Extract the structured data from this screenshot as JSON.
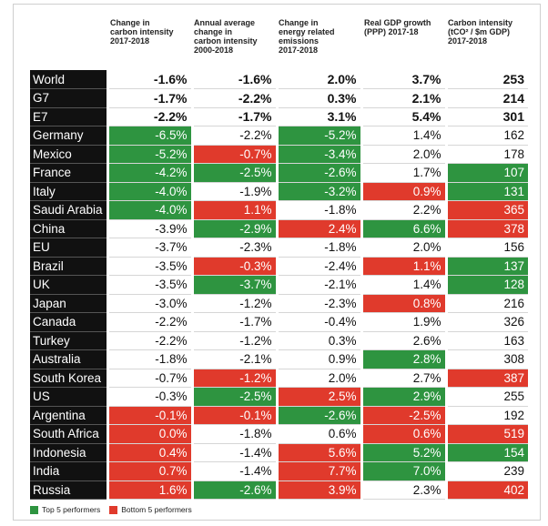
{
  "headers": [
    [
      "Change in",
      "carbon intensity",
      "2017-2018"
    ],
    [
      "Annual average",
      "change in",
      "carbon intensity",
      "2000-2018"
    ],
    [
      "Change in",
      "energy related",
      "emissions",
      "2017-2018"
    ],
    [
      "Real GDP growth",
      "(PPP) 2017-18"
    ],
    [
      "Carbon intensity",
      "(tCO² / $m GDP)",
      "2017-2018"
    ]
  ],
  "legend": {
    "top": "Top 5 performers",
    "bottom": "Bottom 5 performers"
  },
  "colors": {
    "top": "#2e9440",
    "bottom": "#e03a2c",
    "name_bg": "#111111"
  },
  "chart_data": {
    "type": "table",
    "columns": [
      "Change in carbon intensity 2017-2018",
      "Annual average change in carbon intensity 2000-2018",
      "Change in energy related emissions 2017-2018",
      "Real GDP growth (PPP) 2017-18",
      "Carbon intensity (tCO² / $m GDP) 2017-2018"
    ],
    "rows": [
      {
        "name": "World",
        "bold": true,
        "values": [
          "-1.6%",
          "-1.6%",
          "2.0%",
          "3.7%",
          "253"
        ],
        "status": [
          "",
          "",
          "",
          "",
          ""
        ]
      },
      {
        "name": "G7",
        "bold": true,
        "values": [
          "-1.7%",
          "-2.2%",
          "0.3%",
          "2.1%",
          "214"
        ],
        "status": [
          "",
          "",
          "",
          "",
          ""
        ]
      },
      {
        "name": "E7",
        "bold": true,
        "values": [
          "-2.2%",
          "-1.7%",
          "3.1%",
          "5.4%",
          "301"
        ],
        "status": [
          "",
          "",
          "",
          "",
          ""
        ]
      },
      {
        "name": "Germany",
        "values": [
          "-6.5%",
          "-2.2%",
          "-5.2%",
          "1.4%",
          "162"
        ],
        "status": [
          "top",
          "",
          "top",
          "",
          ""
        ]
      },
      {
        "name": "Mexico",
        "values": [
          "-5.2%",
          "-0.7%",
          "-3.4%",
          "2.0%",
          "178"
        ],
        "status": [
          "top",
          "bottom",
          "top",
          "",
          ""
        ]
      },
      {
        "name": "France",
        "values": [
          "-4.2%",
          "-2.5%",
          "-2.6%",
          "1.7%",
          "107"
        ],
        "status": [
          "top",
          "top",
          "top",
          "",
          "top"
        ]
      },
      {
        "name": "Italy",
        "values": [
          "-4.0%",
          "-1.9%",
          "-3.2%",
          "0.9%",
          "131"
        ],
        "status": [
          "top",
          "",
          "top",
          "bottom",
          "top"
        ]
      },
      {
        "name": "Saudi Arabia",
        "values": [
          "-4.0%",
          "1.1%",
          "-1.8%",
          "2.2%",
          "365"
        ],
        "status": [
          "top",
          "bottom",
          "",
          "",
          "bottom"
        ]
      },
      {
        "name": "China",
        "values": [
          "-3.9%",
          "-2.9%",
          "2.4%",
          "6.6%",
          "378"
        ],
        "status": [
          "",
          "top",
          "bottom",
          "top",
          "bottom"
        ]
      },
      {
        "name": "EU",
        "values": [
          "-3.7%",
          "-2.3%",
          "-1.8%",
          "2.0%",
          "156"
        ],
        "status": [
          "",
          "",
          "",
          "",
          ""
        ]
      },
      {
        "name": "Brazil",
        "values": [
          "-3.5%",
          "-0.3%",
          "-2.4%",
          "1.1%",
          "137"
        ],
        "status": [
          "",
          "bottom",
          "",
          "bottom",
          "top"
        ]
      },
      {
        "name": "UK",
        "values": [
          "-3.5%",
          "-3.7%",
          "-2.1%",
          "1.4%",
          "128"
        ],
        "status": [
          "",
          "top",
          "",
          "",
          "top"
        ]
      },
      {
        "name": "Japan",
        "values": [
          "-3.0%",
          "-1.2%",
          "-2.3%",
          "0.8%",
          "216"
        ],
        "status": [
          "",
          "",
          "",
          "bottom",
          ""
        ]
      },
      {
        "name": "Canada",
        "values": [
          "-2.2%",
          "-1.7%",
          "-0.4%",
          "1.9%",
          "326"
        ],
        "status": [
          "",
          "",
          "",
          "",
          ""
        ]
      },
      {
        "name": "Turkey",
        "values": [
          "-2.2%",
          "-1.2%",
          "0.3%",
          "2.6%",
          "163"
        ],
        "status": [
          "",
          "",
          "",
          "",
          ""
        ]
      },
      {
        "name": "Australia",
        "values": [
          "-1.8%",
          "-2.1%",
          "0.9%",
          "2.8%",
          "308"
        ],
        "status": [
          "",
          "",
          "",
          "top",
          ""
        ]
      },
      {
        "name": "South Korea",
        "values": [
          "-0.7%",
          "-1.2%",
          "2.0%",
          "2.7%",
          "387"
        ],
        "status": [
          "",
          "bottom",
          "",
          "",
          "bottom"
        ]
      },
      {
        "name": "US",
        "values": [
          "-0.3%",
          "-2.5%",
          "2.5%",
          "2.9%",
          "255"
        ],
        "status": [
          "",
          "top",
          "bottom",
          "top",
          ""
        ]
      },
      {
        "name": "Argentina",
        "values": [
          "-0.1%",
          "-0.1%",
          "-2.6%",
          "-2.5%",
          "192"
        ],
        "status": [
          "bottom",
          "bottom",
          "top",
          "bottom",
          ""
        ]
      },
      {
        "name": "South Africa",
        "values": [
          "0.0%",
          "-1.8%",
          "0.6%",
          "0.6%",
          "519"
        ],
        "status": [
          "bottom",
          "",
          "",
          "bottom",
          "bottom"
        ]
      },
      {
        "name": "Indonesia",
        "values": [
          "0.4%",
          "-1.4%",
          "5.6%",
          "5.2%",
          "154"
        ],
        "status": [
          "bottom",
          "",
          "bottom",
          "top",
          "top"
        ]
      },
      {
        "name": "India",
        "values": [
          "0.7%",
          "-1.4%",
          "7.7%",
          "7.0%",
          "239"
        ],
        "status": [
          "bottom",
          "",
          "bottom",
          "top",
          ""
        ]
      },
      {
        "name": "Russia",
        "values": [
          "1.6%",
          "-2.6%",
          "3.9%",
          "2.3%",
          "402"
        ],
        "status": [
          "bottom",
          "top",
          "bottom",
          "",
          "bottom"
        ]
      }
    ]
  }
}
